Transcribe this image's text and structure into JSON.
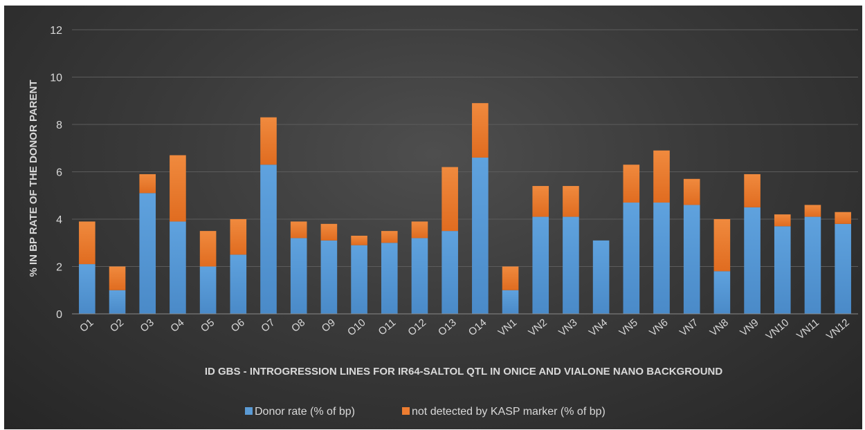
{
  "chart_data": {
    "type": "bar",
    "stacked": true,
    "title": "",
    "xlabel": "ID GBS - INTROGRESSION LINES FOR IR64-SALTOL QTL  IN ONICE AND VIALONE NANO BACKGROUND",
    "ylabel": "% IN BP RATE OF THE  DONOR PARENT",
    "ylim": [
      0,
      12
    ],
    "yticks": [
      0,
      2,
      4,
      6,
      8,
      10,
      12
    ],
    "grid": true,
    "legend": "bottom",
    "categories": [
      "O1",
      "O2",
      "O3",
      "O4",
      "O5",
      "O6",
      "O7",
      "O8",
      "O9",
      "O10",
      "O11",
      "O12",
      "O13",
      "O14",
      "VN1",
      "VN2",
      "VN3",
      "VN4",
      "VN5",
      "VN6",
      "VN7",
      "VN8",
      "VN9",
      "VN10",
      "VN11",
      "VN12"
    ],
    "series": [
      {
        "name": "Donor rate (% of bp)",
        "color": "#5b9bd5",
        "values": [
          2.1,
          1.0,
          5.1,
          3.9,
          2.0,
          2.5,
          6.3,
          3.2,
          3.1,
          2.9,
          3.0,
          3.2,
          3.5,
          6.6,
          1.0,
          4.1,
          4.1,
          3.1,
          4.7,
          4.7,
          4.6,
          1.8,
          4.5,
          3.7,
          4.1,
          3.8
        ]
      },
      {
        "name": "not detected by KASP marker (% of bp)",
        "color": "#ed7d31",
        "values": [
          1.8,
          1.0,
          0.8,
          2.8,
          1.5,
          1.5,
          2.0,
          0.7,
          0.7,
          0.4,
          0.5,
          0.7,
          2.7,
          2.3,
          1.0,
          1.3,
          1.3,
          0.0,
          1.6,
          2.2,
          1.1,
          2.2,
          1.4,
          0.5,
          0.5,
          0.5
        ]
      }
    ]
  }
}
